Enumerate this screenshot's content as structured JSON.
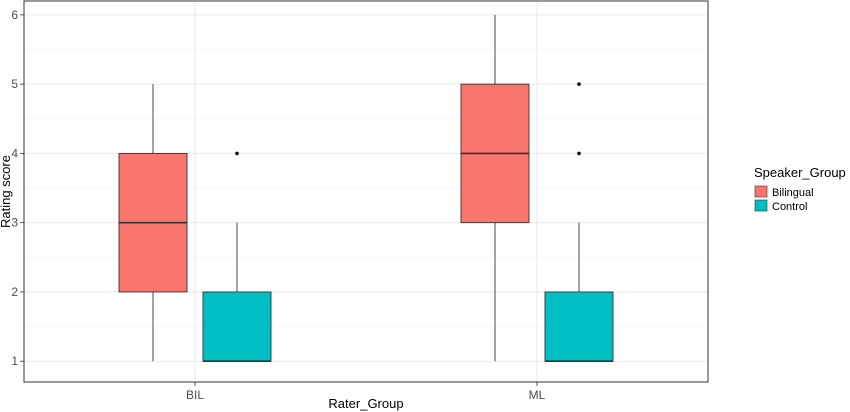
{
  "chart_data": {
    "type": "boxplot",
    "xlabel": "Rater_Group",
    "ylabel": "Rating score",
    "categories": [
      "BIL",
      "ML"
    ],
    "yticks": [
      1,
      2,
      3,
      4,
      5,
      6
    ],
    "ylim": [
      0.7,
      6.2
    ],
    "grid": true,
    "legend_title": "Speaker_Group",
    "legend_position": "right",
    "series": [
      {
        "name": "Bilingual",
        "color": "#F8766D",
        "boxes": [
          {
            "category": "BIL",
            "min": 1,
            "q1": 2,
            "median": 3,
            "q3": 4,
            "max": 5,
            "outliers": []
          },
          {
            "category": "ML",
            "min": 1,
            "q1": 3,
            "median": 4,
            "q3": 5,
            "max": 6,
            "outliers": []
          }
        ]
      },
      {
        "name": "Control",
        "color": "#00BFC4",
        "boxes": [
          {
            "category": "BIL",
            "min": 1,
            "q1": 1,
            "median": 1,
            "q3": 2,
            "max": 3,
            "outliers": [
              4
            ]
          },
          {
            "category": "ML",
            "min": 1,
            "q1": 1,
            "median": 1,
            "q3": 2,
            "max": 3,
            "outliers": [
              4,
              5
            ]
          }
        ]
      }
    ]
  }
}
